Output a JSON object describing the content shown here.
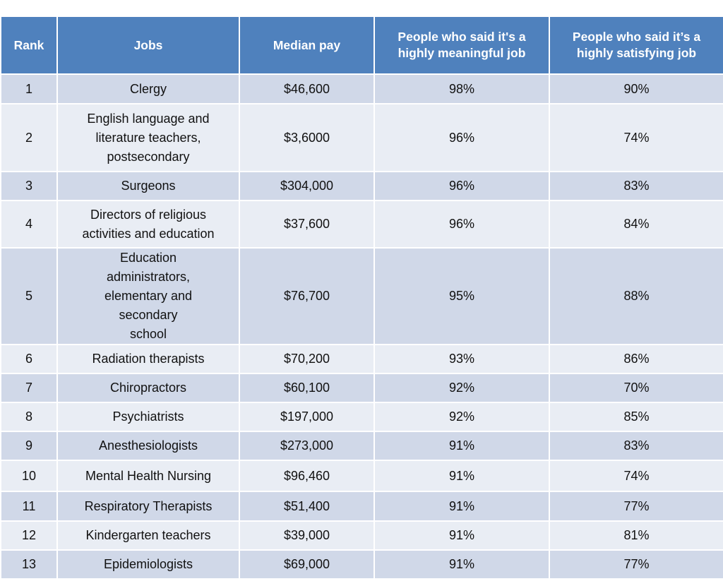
{
  "table": {
    "header": [
      "Rank",
      "Jobs",
      "Median pay",
      "People who said it's a highly meaningful job",
      "People who said it’s a highly satisfying job"
    ],
    "rows": [
      [
        "1",
        "Clergy",
        "$46,600",
        "98%",
        "90%"
      ],
      [
        "2",
        "English language and literature teachers, postsecondary",
        "$3,6000",
        "96%",
        "74%"
      ],
      [
        "3",
        "Surgeons",
        "$304,000",
        "96%",
        "83%"
      ],
      [
        "4",
        "Directors of religious activities and education",
        "$37,600",
        "96%",
        "84%"
      ],
      [
        "5",
        "Education administrators, elementary and secondary school",
        "$76,700",
        "95%",
        "88%"
      ],
      [
        "6",
        "Radiation therapists",
        "$70,200",
        "93%",
        "86%"
      ],
      [
        "7",
        "Chiropractors",
        "$60,100",
        "92%",
        "70%"
      ],
      [
        "8",
        "Psychiatrists",
        "$197,000",
        "92%",
        "85%"
      ],
      [
        "9",
        "Anesthesiologists",
        "$273,000",
        "91%",
        "83%"
      ],
      [
        "10",
        "Mental Health Nursing",
        "$96,460",
        "91%",
        "74%"
      ],
      [
        "11",
        "Respiratory Therapists",
        "$51,400",
        "91%",
        "77%"
      ],
      [
        "12",
        "Kindergarten teachers",
        "$39,000",
        "91%",
        "81%"
      ],
      [
        "13",
        "Epidemiologists",
        "$69,000",
        "91%",
        "77%"
      ]
    ]
  }
}
